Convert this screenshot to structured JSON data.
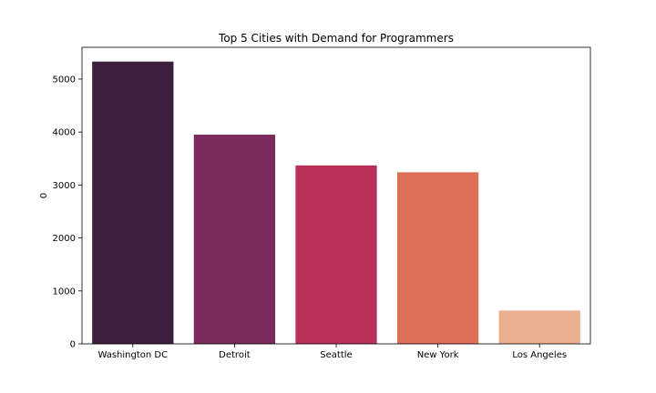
{
  "chart_data": {
    "type": "bar",
    "title": "Top 5 Cities with Demand for Programmers",
    "xlabel": "",
    "ylabel": "0",
    "categories": [
      "Washington DC",
      "Detroit",
      "Seattle",
      "New York",
      "Los Angeles"
    ],
    "values": [
      5330,
      3950,
      3370,
      3240,
      630
    ],
    "ylim": [
      0,
      5600
    ],
    "yticks": [
      0,
      1000,
      2000,
      3000,
      4000,
      5000
    ],
    "colors": [
      "#3b1f3d",
      "#7a2b5b",
      "#b83158",
      "#dd6f59",
      "#e9af8f"
    ],
    "grid": false,
    "legend": "none"
  }
}
